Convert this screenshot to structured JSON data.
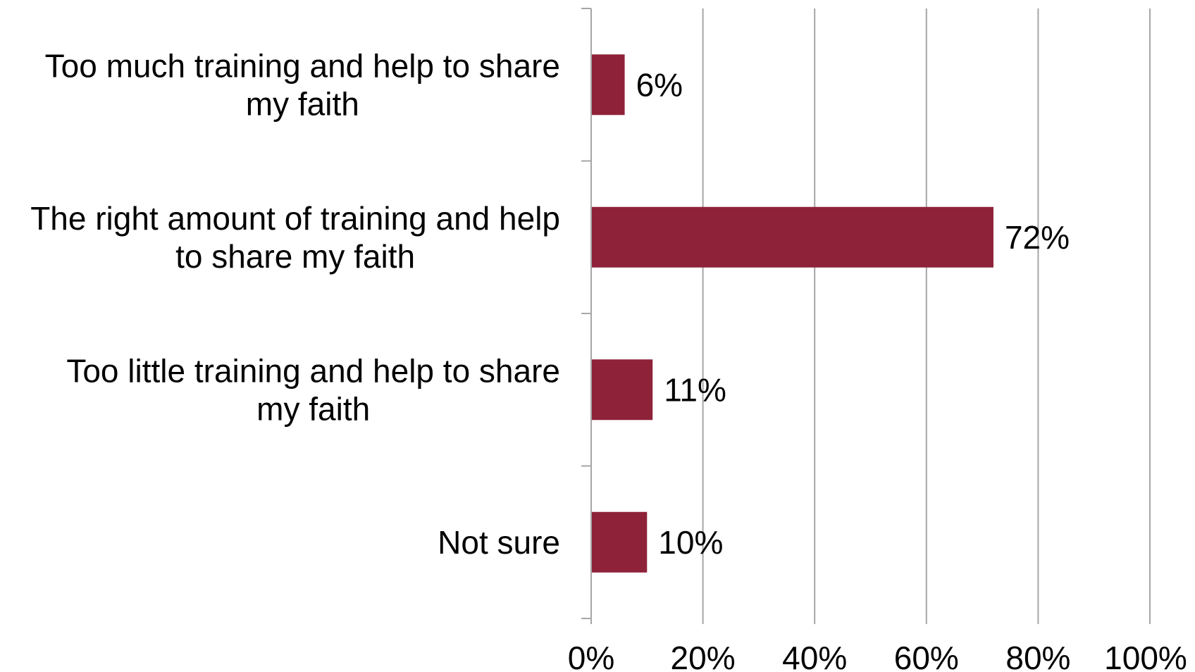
{
  "chart_data": {
    "type": "bar",
    "orientation": "horizontal",
    "categories": [
      [
        "Too much training and help to share",
        "my faith"
      ],
      [
        "The right amount of training and help",
        "to share my faith"
      ],
      [
        "Too little training and help to share",
        "my faith"
      ],
      [
        "Not sure"
      ]
    ],
    "values": [
      6,
      72,
      11,
      10
    ],
    "value_labels": [
      "6%",
      "72%",
      "11%",
      "10%"
    ],
    "xlim": [
      0,
      100
    ],
    "x_ticks": [
      0,
      20,
      40,
      60,
      80,
      100
    ],
    "x_tick_labels": [
      "0%",
      "20%",
      "40%",
      "60%",
      "80%",
      "100%"
    ],
    "grid": "vertical",
    "legend": "none",
    "bar_color": "#8E2239",
    "grid_color": "#A6A6A6"
  }
}
